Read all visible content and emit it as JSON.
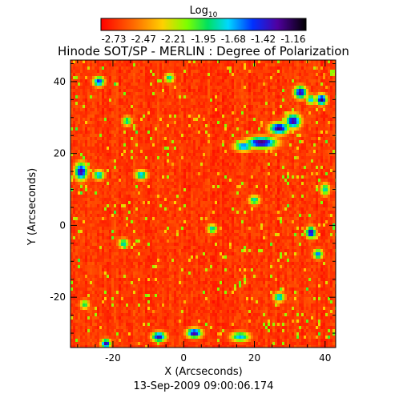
{
  "colorbar": {
    "label_main": "Log",
    "label_sub": "10",
    "ticks": [
      "-2.73",
      "-2.47",
      "-2.21",
      "-1.95",
      "-1.68",
      "-1.42",
      "-1.16"
    ],
    "range": [
      -2.73,
      -1.16
    ]
  },
  "chart_data": {
    "type": "heatmap",
    "title": "Hinode SOT/SP - MERLIN : Degree of Polarization",
    "xlabel": "X (Arcseconds)",
    "ylabel": "Y (Arcseconds)",
    "xlim": [
      -32,
      43
    ],
    "ylim": [
      -34,
      46
    ],
    "x_ticks": [
      "-20",
      "0",
      "20",
      "40"
    ],
    "x_tick_values": [
      -20,
      0,
      20,
      40
    ],
    "y_ticks": [
      "-20",
      "0",
      "20",
      "40"
    ],
    "y_tick_values": [
      -20,
      0,
      20,
      40
    ],
    "value_range": [
      -2.73,
      -1.16
    ],
    "background_level": -2.7,
    "features": [
      {
        "x": 22,
        "y": 23,
        "sx": 3.2,
        "sy": 1.2,
        "value": -1.3
      },
      {
        "x": 27,
        "y": 27,
        "sx": 2.0,
        "sy": 1.2,
        "value": -1.3
      },
      {
        "x": 31,
        "y": 29,
        "sx": 1.6,
        "sy": 1.5,
        "value": -1.35
      },
      {
        "x": 17,
        "y": 22,
        "sx": 2.0,
        "sy": 1.0,
        "value": -1.6
      },
      {
        "x": 33,
        "y": 37,
        "sx": 1.3,
        "sy": 1.3,
        "value": -1.35
      },
      {
        "x": 39,
        "y": 35,
        "sx": 1.1,
        "sy": 1.1,
        "value": -1.3
      },
      {
        "x": 36,
        "y": 35,
        "sx": 1.0,
        "sy": 1.0,
        "value": -1.7
      },
      {
        "x": -29,
        "y": 15,
        "sx": 1.3,
        "sy": 1.8,
        "value": -1.35
      },
      {
        "x": -24,
        "y": 40,
        "sx": 1.2,
        "sy": 1.0,
        "value": -1.5
      },
      {
        "x": -24,
        "y": 14,
        "sx": 1.2,
        "sy": 1.0,
        "value": -1.7
      },
      {
        "x": -16,
        "y": 29,
        "sx": 1.0,
        "sy": 1.0,
        "value": -1.8
      },
      {
        "x": -12,
        "y": 14,
        "sx": 1.3,
        "sy": 1.0,
        "value": -1.7
      },
      {
        "x": -4,
        "y": 41,
        "sx": 1.0,
        "sy": 1.0,
        "value": -1.8
      },
      {
        "x": 36,
        "y": -2,
        "sx": 1.0,
        "sy": 1.2,
        "value": -1.35
      },
      {
        "x": 38,
        "y": -8,
        "sx": 1.0,
        "sy": 1.0,
        "value": -1.6
      },
      {
        "x": 3,
        "y": -30,
        "sx": 1.6,
        "sy": 1.0,
        "value": -1.35
      },
      {
        "x": -7,
        "y": -31,
        "sx": 1.5,
        "sy": 1.0,
        "value": -1.4
      },
      {
        "x": -22,
        "y": -33,
        "sx": 1.0,
        "sy": 1.0,
        "value": -1.35
      },
      {
        "x": 16,
        "y": -31,
        "sx": 2.0,
        "sy": 1.0,
        "value": -1.7
      },
      {
        "x": 27,
        "y": -20,
        "sx": 1.2,
        "sy": 1.0,
        "value": -1.7
      },
      {
        "x": 8,
        "y": -1,
        "sx": 1.0,
        "sy": 1.0,
        "value": -1.8
      },
      {
        "x": -17,
        "y": -5,
        "sx": 1.1,
        "sy": 1.0,
        "value": -1.8
      },
      {
        "x": 20,
        "y": 7,
        "sx": 1.2,
        "sy": 1.0,
        "value": -1.8
      },
      {
        "x": 40,
        "y": 10,
        "sx": 1.0,
        "sy": 1.3,
        "value": -1.8
      },
      {
        "x": -28,
        "y": -22,
        "sx": 1.0,
        "sy": 1.0,
        "value": -1.9
      }
    ]
  },
  "footer": {
    "timestamp": "13-Sep-2009 09:00:06.174"
  }
}
